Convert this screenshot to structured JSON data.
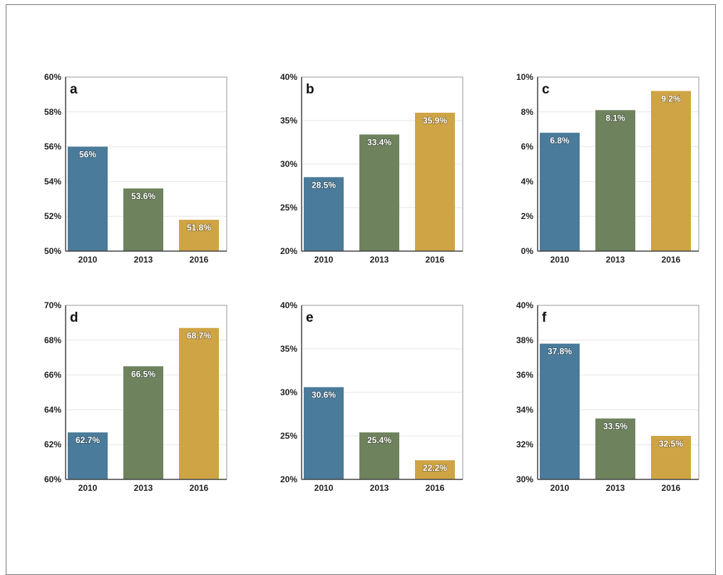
{
  "colors": {
    "bar_2010": "#4a7b9a",
    "bar_2013": "#6e825e",
    "bar_2016": "#cfa444",
    "gridline": "#e6e6e6",
    "axis": "#444444"
  },
  "chart_data": [
    {
      "type": "bar",
      "panel": "a",
      "categories": [
        "2010",
        "2013",
        "2016"
      ],
      "values": [
        56,
        53.6,
        51.8
      ],
      "data_labels": [
        "56%",
        "53.6%",
        "51.8%"
      ],
      "ylim": [
        50,
        60
      ],
      "yticks": [
        "50%",
        "52%",
        "54%",
        "56%",
        "58%",
        "60%"
      ],
      "grid": true
    },
    {
      "type": "bar",
      "panel": "b",
      "categories": [
        "2010",
        "2013",
        "2016"
      ],
      "values": [
        28.5,
        33.4,
        35.9
      ],
      "data_labels": [
        "28.5%",
        "33.4%",
        "35.9%"
      ],
      "ylim": [
        20,
        40
      ],
      "yticks": [
        "20%",
        "25%",
        "30%",
        "35%",
        "40%"
      ],
      "grid": true
    },
    {
      "type": "bar",
      "panel": "c",
      "categories": [
        "2010",
        "2013",
        "2016"
      ],
      "values": [
        6.8,
        8.1,
        9.2
      ],
      "data_labels": [
        "6.8%",
        "8.1%",
        "9.2%"
      ],
      "ylim": [
        0,
        10
      ],
      "yticks": [
        "0%",
        "2%",
        "4%",
        "6%",
        "8%",
        "10%"
      ],
      "grid": true
    },
    {
      "type": "bar",
      "panel": "d",
      "categories": [
        "2010",
        "2013",
        "2016"
      ],
      "values": [
        62.7,
        66.5,
        68.7
      ],
      "data_labels": [
        "62.7%",
        "66.5%",
        "68.7%"
      ],
      "ylim": [
        60,
        70
      ],
      "yticks": [
        "60%",
        "62%",
        "64%",
        "66%",
        "68%",
        "70%"
      ],
      "grid": true
    },
    {
      "type": "bar",
      "panel": "e",
      "categories": [
        "2010",
        "2013",
        "2016"
      ],
      "values": [
        30.6,
        25.4,
        22.2
      ],
      "data_labels": [
        "30.6%",
        "25.4%",
        "22.2%"
      ],
      "ylim": [
        20,
        40
      ],
      "yticks": [
        "20%",
        "25%",
        "30%",
        "35%",
        "40%"
      ],
      "grid": true
    },
    {
      "type": "bar",
      "panel": "f",
      "categories": [
        "2010",
        "2013",
        "2016"
      ],
      "values": [
        37.8,
        33.5,
        32.5
      ],
      "data_labels": [
        "37.8%",
        "33.5%",
        "32.5%"
      ],
      "ylim": [
        30,
        40
      ],
      "yticks": [
        "30%",
        "32%",
        "34%",
        "36%",
        "38%",
        "40%"
      ],
      "grid": true
    }
  ]
}
